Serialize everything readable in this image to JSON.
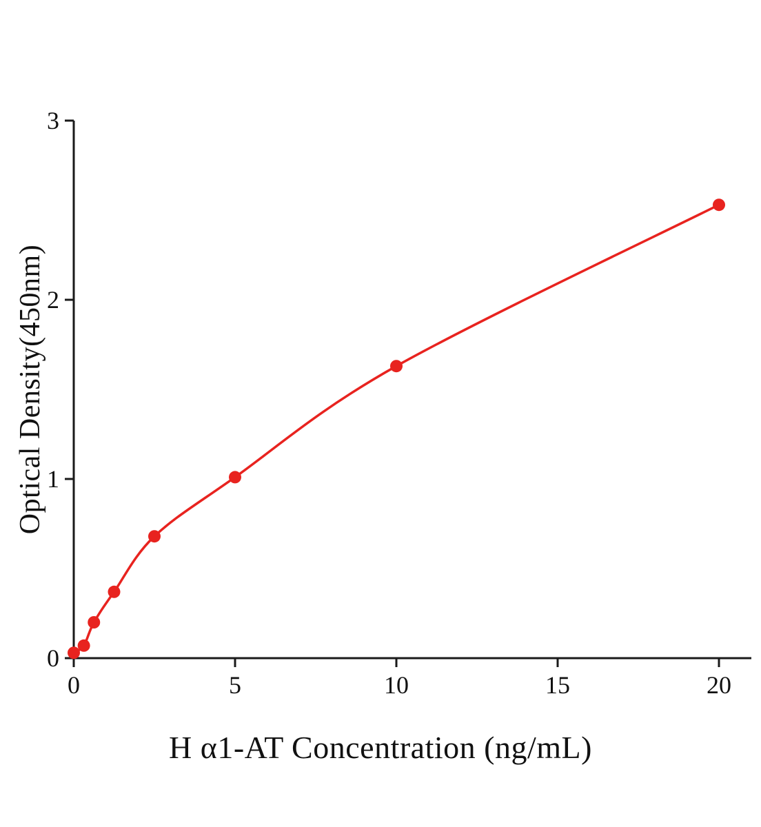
{
  "chart_data": {
    "type": "scatter",
    "title": "",
    "xlabel": "H α1-AT Concentration (ng/mL)",
    "ylabel": "Optical Density(450nm)",
    "x": [
      0,
      0.313,
      0.625,
      1.25,
      2.5,
      5,
      10,
      20
    ],
    "y": [
      0.03,
      0.07,
      0.2,
      0.37,
      0.68,
      1.01,
      1.63,
      2.53
    ],
    "xlim": [
      0,
      21
    ],
    "ylim": [
      0,
      3
    ],
    "xticks": [
      0,
      5,
      10,
      15,
      20
    ],
    "yticks": [
      0,
      1,
      2,
      3
    ],
    "grid": false,
    "legend": null,
    "fit": "smooth curve through points",
    "point_color": "#e8231f",
    "line_color": "#e8231f",
    "axis_color": "#1a1a1a"
  }
}
